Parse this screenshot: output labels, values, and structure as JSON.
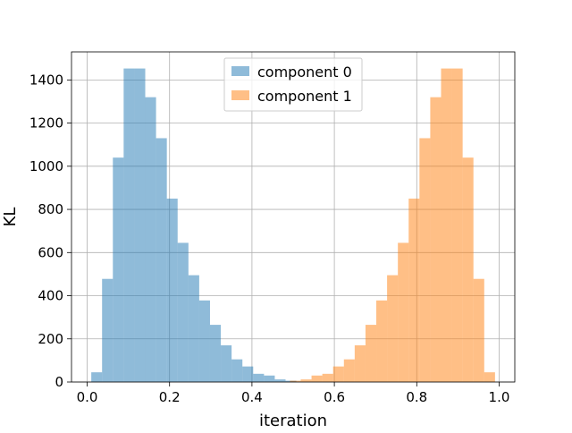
{
  "chart_data": {
    "type": "histogram",
    "title": "",
    "xlabel": "iteration",
    "ylabel": "KL",
    "xlim": [
      -0.038,
      1.038
    ],
    "ylim": [
      0,
      1530
    ],
    "xticks": [
      0.0,
      0.2,
      0.4,
      0.6,
      0.8,
      1.0
    ],
    "xtick_labels": [
      "0.0",
      "0.2",
      "0.4",
      "0.6",
      "0.8",
      "1.0"
    ],
    "yticks": [
      0,
      200,
      400,
      600,
      800,
      1000,
      1200,
      1400
    ],
    "ytick_labels": [
      "0",
      "200",
      "400",
      "600",
      "800",
      "1000",
      "1200",
      "1400"
    ],
    "grid": true,
    "legend_position": "upper center",
    "series": [
      {
        "name": "component 0",
        "color": "#1f77b4",
        "alpha": 0.5,
        "bin_edges": [
          0.01,
          0.0362,
          0.0624,
          0.0886,
          0.1148,
          0.141,
          0.1672,
          0.1934,
          0.2196,
          0.2458,
          0.272,
          0.2982,
          0.3244,
          0.3506,
          0.3768,
          0.403,
          0.4292,
          0.4554,
          0.4816,
          0.5078
        ],
        "counts": [
          45,
          478,
          1040,
          1453,
          1453,
          1320,
          1130,
          850,
          645,
          495,
          378,
          265,
          170,
          105,
          72,
          38,
          30,
          12,
          6
        ]
      },
      {
        "name": "component 1",
        "color": "#ff7f0e",
        "alpha": 0.5,
        "bin_edges": [
          0.4922,
          0.5184,
          0.5446,
          0.5708,
          0.597,
          0.6232,
          0.6494,
          0.6756,
          0.7018,
          0.728,
          0.7542,
          0.7804,
          0.8066,
          0.8328,
          0.859,
          0.8852,
          0.9114,
          0.9376,
          0.9638,
          0.99
        ],
        "counts": [
          6,
          12,
          30,
          38,
          72,
          105,
          170,
          265,
          378,
          495,
          645,
          850,
          1130,
          1320,
          1453,
          1453,
          1040,
          478,
          45
        ]
      }
    ]
  }
}
